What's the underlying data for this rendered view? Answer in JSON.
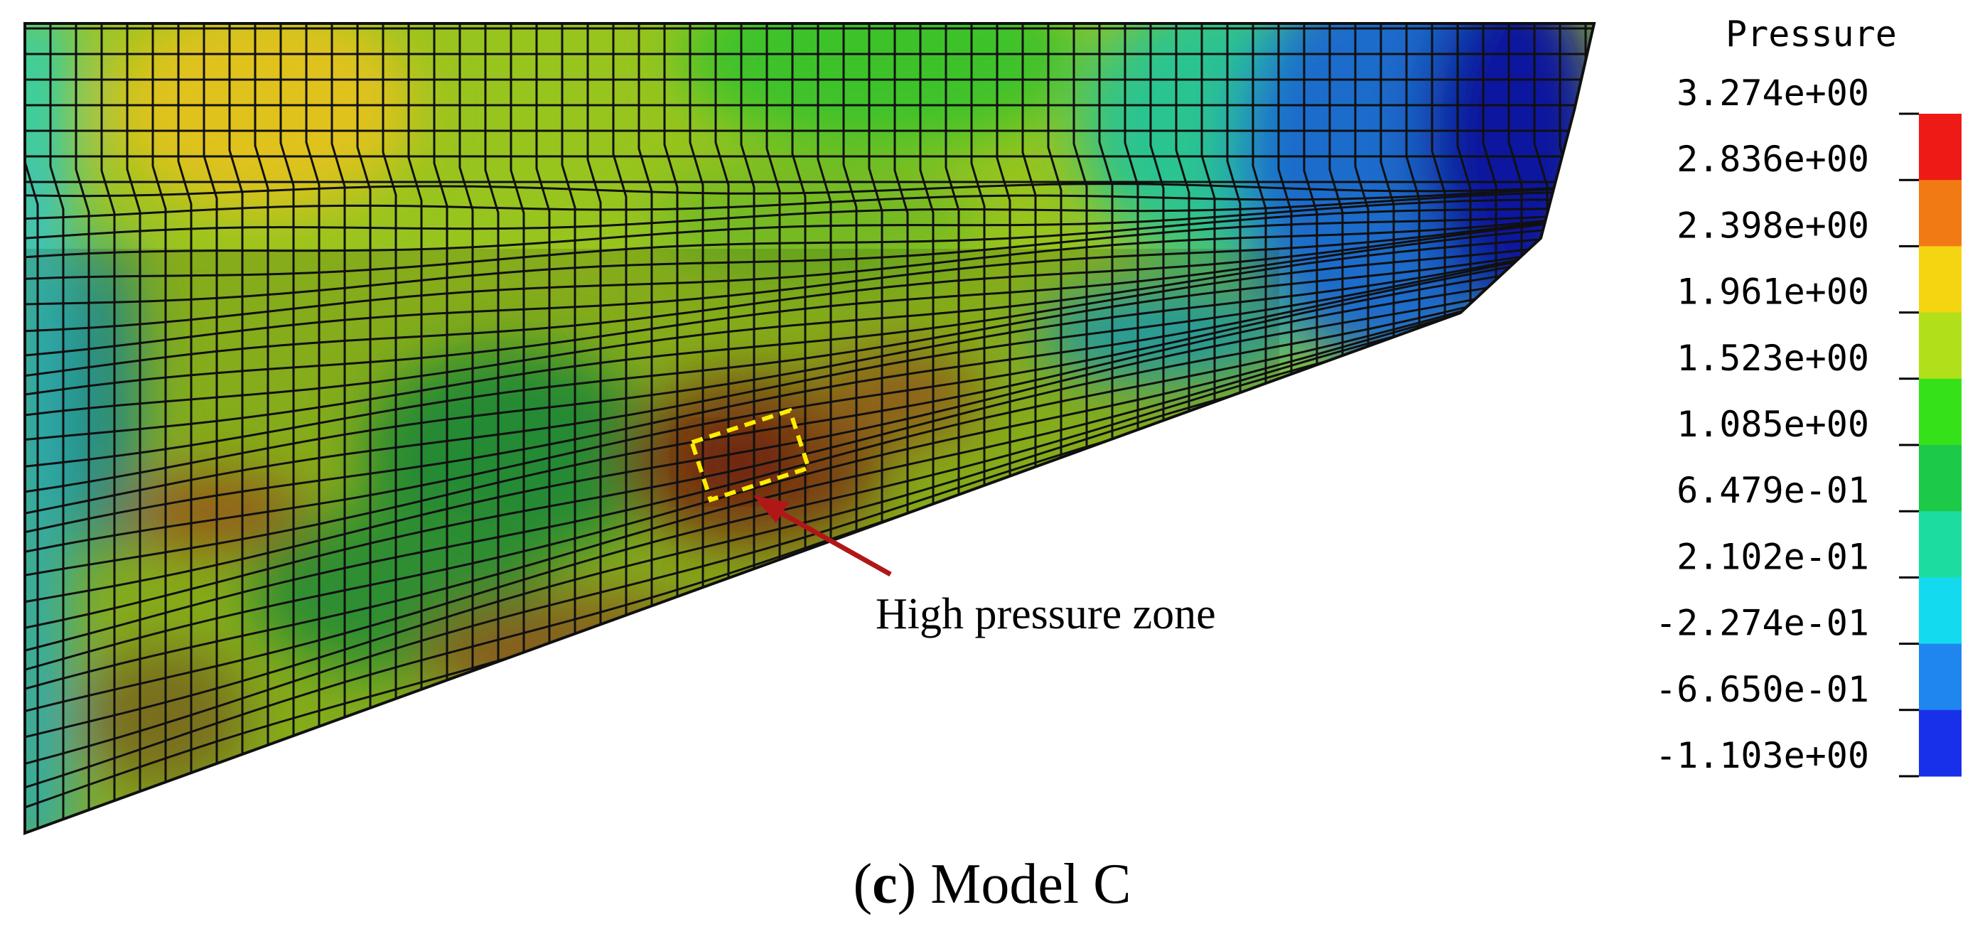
{
  "figure": {
    "caption_prefix": "(",
    "caption_letter": "c",
    "caption_rest": ") Model C",
    "annotation": "High pressure zone"
  },
  "legend": {
    "title": "Pressure",
    "labels": [
      "3.274e+00",
      "2.836e+00",
      "2.398e+00",
      "1.961e+00",
      "1.523e+00",
      "1.085e+00",
      "6.479e-01",
      "2.102e-01",
      "-2.274e-01",
      "-6.650e-01",
      "-1.103e+00"
    ],
    "colors": [
      "#ee1a16",
      "#f27a14",
      "#f5d412",
      "#b1e01a",
      "#35e21a",
      "#1dc948",
      "#1cdca0",
      "#14daf0",
      "#1f86f0",
      "#1930ea"
    ]
  },
  "colors": {
    "highlight_box": "#ffee00",
    "arrow": "#b01818",
    "mesh_line": "#101010"
  }
}
